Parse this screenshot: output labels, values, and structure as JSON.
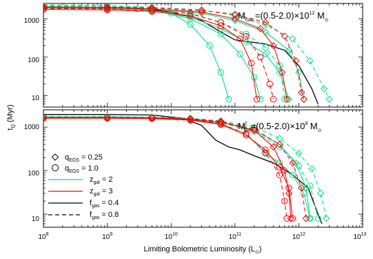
{
  "chart_data": [
    {
      "type": "line",
      "panel_label": {
        "main": "M",
        "sub": "GAL",
        "rest": "=(0.5-2.0)×10",
        "exp": "12",
        "tail": " M",
        "sun_sub": "⊙"
      },
      "ylabel": "t",
      "ylabel_sub": "Q",
      "ylabel_rest": " (Myr)",
      "xlim": [
        100000000.0,
        10000000000000.0
      ],
      "ylim": [
        5,
        2500
      ],
      "xscale": "log",
      "yscale": "log",
      "yticks": [
        "10",
        "100",
        "1000"
      ],
      "series": [
        {
          "color": "#000000",
          "dash": "solid",
          "marker": "none",
          "points": [
            [
              100000000.0,
              2000
            ],
            [
              1000000000.0,
              2000
            ],
            [
              3000000000.0,
              1900
            ],
            [
              10000000000.0,
              1500
            ],
            [
              30000000000.0,
              900
            ],
            [
              60000000000.0,
              450
            ],
            [
              100000000000.0,
              280
            ],
            [
              300000000000.0,
              220
            ],
            [
              600000000000.0,
              150
            ],
            [
              1000000000000.0,
              60
            ],
            [
              1600000000000.0,
              15
            ],
            [
              2000000000000.0,
              6
            ]
          ]
        },
        {
          "color": "#00e08a",
          "dash": "solid",
          "marker": "circle",
          "points": [
            [
              100000000.0,
              2100
            ],
            [
              1000000000.0,
              2000
            ],
            [
              3000000000.0,
              1800
            ],
            [
              10000000000.0,
              1400
            ],
            [
              20000000000.0,
              700
            ],
            [
              40000000000.0,
              200
            ],
            [
              60000000000.0,
              40
            ],
            [
              80000000000.0,
              8
            ]
          ]
        },
        {
          "color": "#00e08a",
          "dash": "solid",
          "marker": "circle",
          "points": [
            [
              100000000.0,
              2000
            ],
            [
              1000000000.0,
              1950
            ],
            [
              5000000000.0,
              1700
            ],
            [
              20000000000.0,
              1000
            ],
            [
              60000000000.0,
              400
            ],
            [
              120000000000.0,
              120
            ],
            [
              200000000000.0,
              30
            ],
            [
              250000000000.0,
              8
            ]
          ]
        },
        {
          "color": "#00e08a",
          "dash": "solid",
          "marker": "diamond",
          "points": [
            [
              100000000.0,
              1900
            ],
            [
              1000000000.0,
              1850
            ],
            [
              5000000000.0,
              1600
            ],
            [
              20000000000.0,
              1100
            ],
            [
              60000000000.0,
              550
            ],
            [
              150000000000.0,
              250
            ],
            [
              300000000000.0,
              120
            ],
            [
              500000000000.0,
              40
            ],
            [
              700000000000.0,
              8
            ]
          ]
        },
        {
          "color": "#00e08a",
          "dash": "dashed",
          "marker": "diamond",
          "points": [
            [
              100000000.0,
              2300
            ],
            [
              1000000000.0,
              2200
            ],
            [
              5000000000.0,
              2000
            ],
            [
              30000000000.0,
              1700
            ],
            [
              100000000000.0,
              1200
            ],
            [
              300000000000.0,
              700
            ],
            [
              800000000000.0,
              300
            ],
            [
              1500000000000.0,
              80
            ],
            [
              2500000000000.0,
              15
            ],
            [
              3000000000000.0,
              8
            ]
          ]
        },
        {
          "color": "#00e08a",
          "dash": "solid",
          "marker": "diamond",
          "points": [
            [
              100000000.0,
              2100
            ],
            [
              1000000000.0,
              2000
            ],
            [
              5000000000.0,
              1800
            ],
            [
              30000000000.0,
              1400
            ],
            [
              100000000000.0,
              900
            ],
            [
              300000000000.0,
              450
            ],
            [
              700000000000.0,
              150
            ],
            [
              1000000000000.0,
              40
            ],
            [
              1200000000000.0,
              8
            ]
          ]
        },
        {
          "color": "#00e08a",
          "dash": "dashed",
          "marker": "circle",
          "points": [
            [
              100000000.0,
              2200
            ],
            [
              1000000000.0,
              2150
            ],
            [
              5000000000.0,
              1900
            ],
            [
              20000000000.0,
              1400
            ],
            [
              60000000000.0,
              800
            ],
            [
              150000000000.0,
              400
            ],
            [
              300000000000.0,
              180
            ],
            [
              500000000000.0,
              60
            ],
            [
              600000000000.0,
              8
            ]
          ]
        },
        {
          "color": "#ff0000",
          "dash": "solid",
          "marker": "circle",
          "points": [
            [
              100000000.0,
              1750
            ],
            [
              1000000000.0,
              1700
            ],
            [
              5000000000.0,
              1550
            ],
            [
              20000000000.0,
              1200
            ],
            [
              60000000000.0,
              650
            ],
            [
              120000000000.0,
              300
            ],
            [
              180000000000.0,
              70
            ],
            [
              220000000000.0,
              8
            ]
          ]
        },
        {
          "color": "#ff0000",
          "dash": "dashed",
          "marker": "circle",
          "points": [
            [
              100000000.0,
              1850
            ],
            [
              1000000000.0,
              1800
            ],
            [
              5000000000.0,
              1650
            ],
            [
              20000000000.0,
              1350
            ],
            [
              60000000000.0,
              800
            ],
            [
              150000000000.0,
              350
            ],
            [
              250000000000.0,
              100
            ],
            [
              350000000000.0,
              20
            ],
            [
              400000000000.0,
              8
            ]
          ]
        },
        {
          "color": "#ff0000",
          "dash": "solid",
          "marker": "diamond",
          "points": [
            [
              100000000.0,
              1950
            ],
            [
              1000000000.0,
              1900
            ],
            [
              5000000000.0,
              1800
            ],
            [
              30000000000.0,
              1500
            ],
            [
              100000000000.0,
              1000
            ],
            [
              250000000000.0,
              550
            ],
            [
              400000000000.0,
              200
            ],
            [
              550000000000.0,
              40
            ],
            [
              650000000000.0,
              8
            ]
          ]
        },
        {
          "color": "#ff0000",
          "dash": "dashed",
          "marker": "diamond",
          "points": [
            [
              100000000.0,
              2050
            ],
            [
              1000000000.0,
              2000
            ],
            [
              5000000000.0,
              1900
            ],
            [
              30000000000.0,
              1650
            ],
            [
              100000000000.0,
              1300
            ],
            [
              300000000000.0,
              800
            ],
            [
              600000000000.0,
              350
            ],
            [
              900000000000.0,
              80
            ],
            [
              1100000000000.0,
              12
            ],
            [
              1200000000000.0,
              8
            ]
          ]
        }
      ]
    },
    {
      "type": "line",
      "panel_label": {
        "main": "M",
        "sub": "BH",
        "sup": "f",
        "rest": "=(0.5-2.0)×10",
        "exp": "8",
        "tail": " M",
        "sun_sub": "⊙"
      },
      "xlim": [
        100000000.0,
        10000000000000.0
      ],
      "ylim": [
        5,
        2500
      ],
      "xscale": "log",
      "yscale": "log",
      "yticks": [
        "10",
        "100",
        "1000"
      ],
      "series": [
        {
          "color": "#000000",
          "dash": "solid",
          "marker": "none",
          "points": [
            [
              100000000.0,
              1950
            ],
            [
              1000000000.0,
              1950
            ],
            [
              5000000000.0,
              1900
            ],
            [
              15000000000.0,
              1600
            ],
            [
              30000000000.0,
              1100
            ],
            [
              50000000000.0,
              500
            ],
            [
              80000000000.0,
              350
            ],
            [
              120000000000.0,
              300
            ],
            [
              200000000000.0,
              220
            ],
            [
              400000000000.0,
              150
            ],
            [
              800000000000.0,
              80
            ],
            [
              1400000000000.0,
              40
            ],
            [
              2000000000000.0,
              10
            ],
            [
              2300000000000.0,
              6
            ]
          ]
        },
        {
          "color": "#00e08a",
          "dash": "solid",
          "marker": "circle",
          "points": [
            [
              100000000.0,
              1700
            ],
            [
              1000000000.0,
              1700
            ],
            [
              5000000000.0,
              1650
            ],
            [
              20000000000.0,
              1500
            ],
            [
              60000000000.0,
              1200
            ],
            [
              150000000000.0,
              700
            ],
            [
              300000000000.0,
              250
            ],
            [
              500000000000.0,
              150
            ],
            [
              800000000000.0,
              80
            ],
            [
              1200000000000.0,
              30
            ],
            [
              1500000000000.0,
              8
            ]
          ]
        },
        {
          "color": "#00e08a",
          "dash": "dashed",
          "marker": "diamond",
          "points": [
            [
              100000000.0,
              1750
            ],
            [
              1000000000.0,
              1750
            ],
            [
              5000000000.0,
              1700
            ],
            [
              20000000000.0,
              1600
            ],
            [
              60000000000.0,
              1400
            ],
            [
              200000000000.0,
              1000
            ],
            [
              500000000000.0,
              550
            ],
            [
              1000000000000.0,
              250
            ],
            [
              1600000000000.0,
              110
            ],
            [
              2200000000000.0,
              30
            ],
            [
              2700000000000.0,
              8
            ]
          ]
        },
        {
          "color": "#00e08a",
          "dash": "solid",
          "marker": "diamond",
          "points": [
            [
              100000000.0,
              1720
            ],
            [
              1000000000.0,
              1720
            ],
            [
              5000000000.0,
              1680
            ],
            [
              20000000000.0,
              1550
            ],
            [
              60000000000.0,
              1300
            ],
            [
              200000000000.0,
              850
            ],
            [
              500000000000.0,
              400
            ],
            [
              900000000000.0,
              150
            ],
            [
              1300000000000.0,
              40
            ],
            [
              1500000000000.0,
              8
            ]
          ]
        },
        {
          "color": "#00e08a",
          "dash": "dashed",
          "marker": "circle",
          "points": [
            [
              100000000.0,
              1680
            ],
            [
              1000000000.0,
              1680
            ],
            [
              5000000000.0,
              1640
            ],
            [
              20000000000.0,
              1520
            ],
            [
              60000000000.0,
              1250
            ],
            [
              200000000000.0,
              800
            ],
            [
              500000000000.0,
              350
            ],
            [
              1000000000000.0,
              130
            ],
            [
              1500000000000.0,
              45
            ],
            [
              2000000000000.0,
              8
            ]
          ]
        },
        {
          "color": "#ff0000",
          "dash": "solid",
          "marker": "circle",
          "points": [
            [
              100000000.0,
              1600
            ],
            [
              1000000000.0,
              1600
            ],
            [
              5000000000.0,
              1570
            ],
            [
              20000000000.0,
              1450
            ],
            [
              60000000000.0,
              1150
            ],
            [
              150000000000.0,
              650
            ],
            [
              300000000000.0,
              300
            ],
            [
              500000000000.0,
              120
            ],
            [
              700000000000.0,
              40
            ],
            [
              800000000000.0,
              8
            ]
          ]
        },
        {
          "color": "#ff0000",
          "dash": "dashed",
          "marker": "circle",
          "points": [
            [
              100000000.0,
              1620
            ],
            [
              1000000000.0,
              1620
            ],
            [
              5000000000.0,
              1590
            ],
            [
              20000000000.0,
              1480
            ],
            [
              60000000000.0,
              1200
            ],
            [
              150000000000.0,
              700
            ],
            [
              300000000000.0,
              260
            ],
            [
              500000000000.0,
              80
            ],
            [
              600000000000.0,
              20
            ],
            [
              650000000000.0,
              8
            ]
          ]
        },
        {
          "color": "#ff0000",
          "dash": "solid",
          "marker": "diamond",
          "points": [
            [
              100000000.0,
              1650
            ],
            [
              1000000000.0,
              1650
            ],
            [
              5000000000.0,
              1620
            ],
            [
              20000000000.0,
              1520
            ],
            [
              60000000000.0,
              1300
            ],
            [
              200000000000.0,
              850
            ],
            [
              400000000000.0,
              350
            ],
            [
              600000000000.0,
              100
            ],
            [
              700000000000.0,
              30
            ],
            [
              750000000000.0,
              8
            ]
          ]
        },
        {
          "color": "#ff0000",
          "dash": "dashed",
          "marker": "diamond",
          "points": [
            [
              100000000.0,
              1680
            ],
            [
              1000000000.0,
              1680
            ],
            [
              5000000000.0,
              1650
            ],
            [
              20000000000.0,
              1560
            ],
            [
              60000000000.0,
              1350
            ],
            [
              200000000000.0,
              900
            ],
            [
              500000000000.0,
              400
            ],
            [
              800000000000.0,
              150
            ],
            [
              1100000000000.0,
              40
            ],
            [
              1300000000000.0,
              8
            ]
          ]
        }
      ]
    }
  ],
  "xaxis": {
    "label": "Limiting Bolometric Luminosity (L",
    "label_sub": "⊙",
    "label_close": ")",
    "ticks": [
      {
        "base": "10",
        "exp": "8"
      },
      {
        "base": "10",
        "exp": "9"
      },
      {
        "base": "10",
        "exp": "10"
      },
      {
        "base": "10",
        "exp": "11"
      },
      {
        "base": "10",
        "exp": "12"
      },
      {
        "base": "10",
        "exp": "13"
      }
    ]
  },
  "legend": {
    "q1": {
      "main": "q",
      "sub": "EOS",
      "rest": " = 0.25"
    },
    "q2": {
      "main": "q",
      "sub": "EOS",
      "rest": " = 1.0"
    },
    "z1": {
      "main": "z",
      "sub": "gal",
      "rest": " = 2"
    },
    "z2": {
      "main": "z",
      "sub": "gal",
      "rest": " = 3"
    },
    "f1": {
      "main": "f",
      "sub": "gas",
      "rest": " = 0.4"
    },
    "f2": {
      "main": "f",
      "sub": "gas",
      "rest": " = 0.8"
    }
  }
}
